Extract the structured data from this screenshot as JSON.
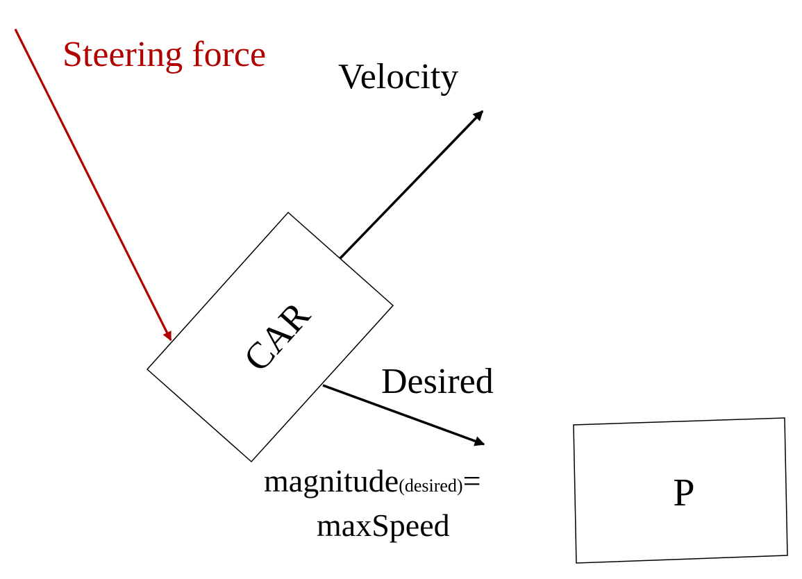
{
  "labels": {
    "steering": "Steering force",
    "velocity": "Velocity",
    "car": "CAR",
    "desired": "Desired",
    "magnitude_main": "magnitude",
    "magnitude_sub": "(desired)",
    "magnitude_eq": "=",
    "max_speed": "maxSpeed",
    "target": "P"
  },
  "colors": {
    "steering": "#b00000",
    "ink": "#000000"
  }
}
